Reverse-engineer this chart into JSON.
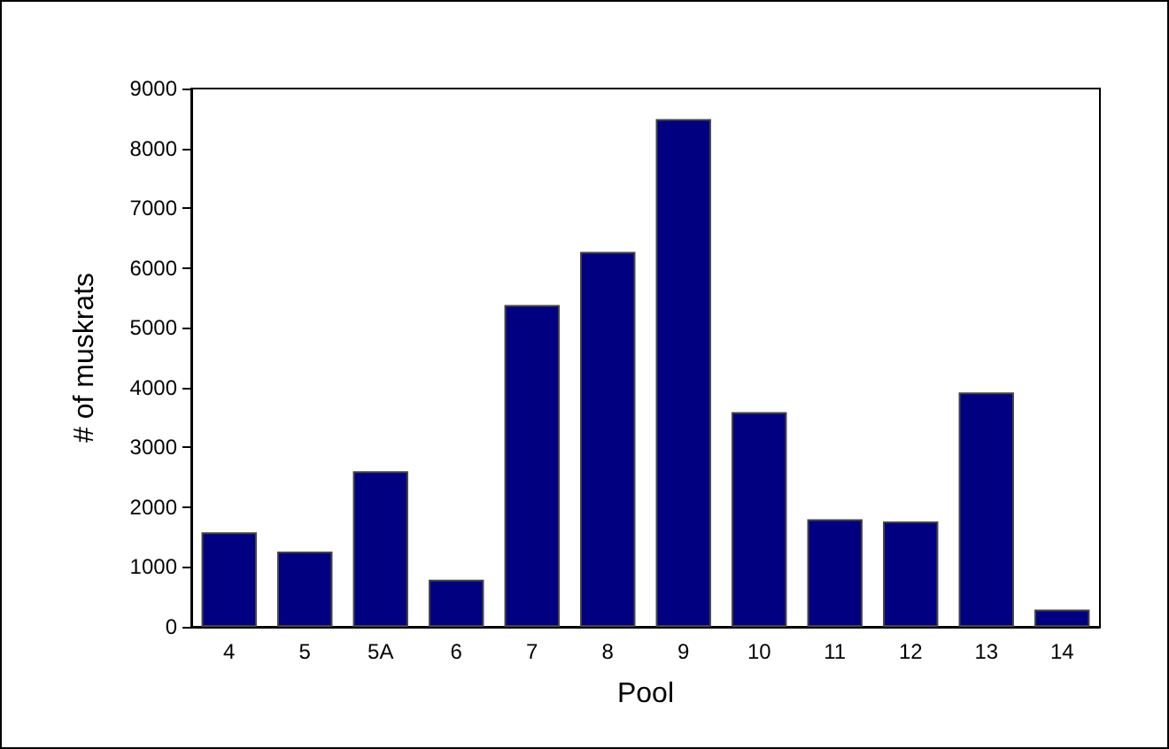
{
  "chart_data": {
    "type": "bar",
    "xlabel": "Pool",
    "ylabel": "# of muskrats",
    "categories": [
      "4",
      "5",
      "5A",
      "6",
      "7",
      "8",
      "9",
      "10",
      "11",
      "12",
      "13",
      "14"
    ],
    "values": [
      1580,
      1260,
      2600,
      790,
      5380,
      6270,
      8490,
      3590,
      1800,
      1760,
      3920,
      290
    ],
    "color": "#000080",
    "ylim": [
      0,
      9000
    ],
    "yticks": [
      0,
      1000,
      2000,
      3000,
      4000,
      5000,
      6000,
      7000,
      8000,
      9000
    ],
    "grid": false
  }
}
